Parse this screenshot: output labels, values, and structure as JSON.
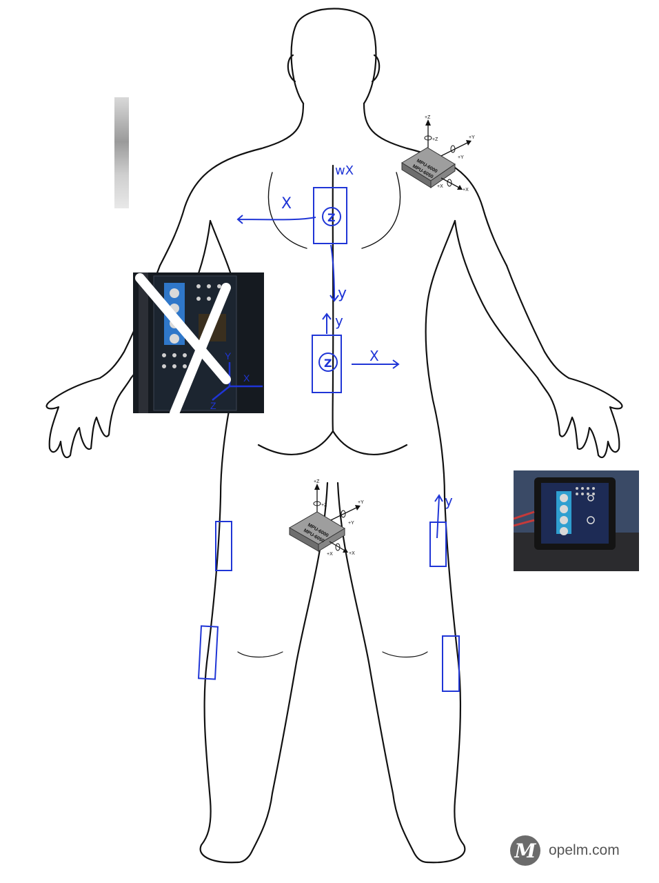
{
  "figure": {
    "colors": {
      "outline": "#111111",
      "annotation": "#1f35d6",
      "chip": "#9e9e9e",
      "chip_side": "#6e6e6e"
    }
  },
  "annotations": {
    "upper_back": {
      "label_z": "Z",
      "label_x": "X",
      "label_y": "y",
      "label_top": "wX"
    },
    "lower_back": {
      "label_z": "Z",
      "label_x": "X",
      "label_y": "y"
    },
    "right_thigh": {
      "label_y": "y"
    }
  },
  "chips": {
    "shoulder": {
      "line1": "MPU-6000",
      "line2": "MPU-6050",
      "axis_z": "+Z",
      "axis_z_rot": "+Z",
      "axis_y": "+Y",
      "axis_y_rot": "+Y",
      "axis_x": "+X",
      "axis_x_rot": "+X"
    },
    "pelvis": {
      "line1": "MPU-6000",
      "line2": "MPU-6050",
      "axis_z": "+Z",
      "axis_z_rot": "+Z",
      "axis_y": "+Y",
      "axis_y_rot": "+Y",
      "axis_x": "+X",
      "axis_x_rot": "+X"
    }
  },
  "photos": {
    "left": {
      "overlay_labels": {
        "y": "Y",
        "x": "X",
        "z": "Z"
      },
      "crossed_out": true
    },
    "right": {}
  },
  "watermark": {
    "logo_letter": "M",
    "site": "opelm.com"
  }
}
